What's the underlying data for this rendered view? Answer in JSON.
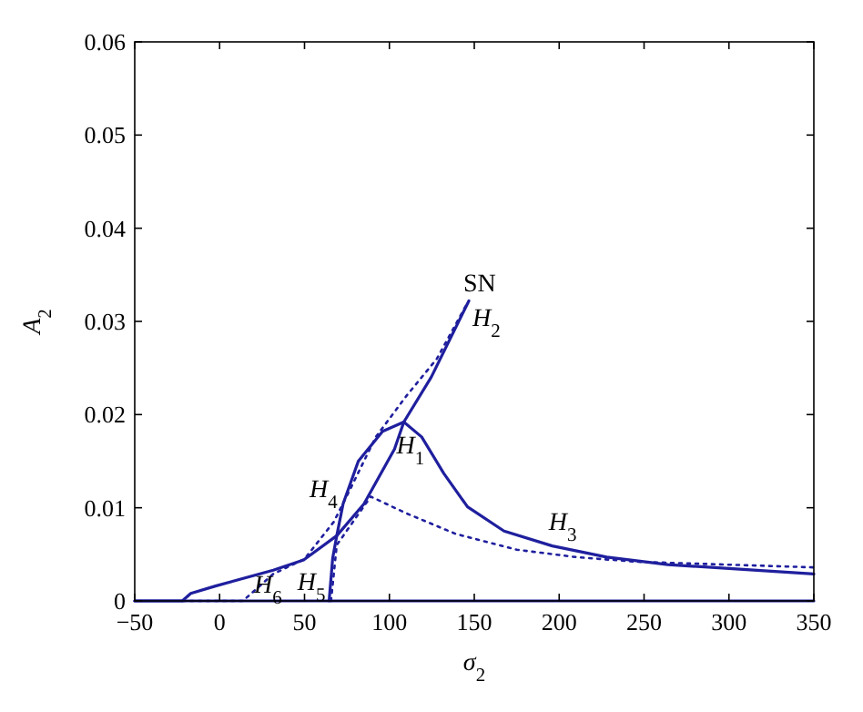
{
  "chart_data": {
    "type": "line",
    "xlabel": "σ$_{2}$",
    "ylabel": "A$_{2}$",
    "xlim": [
      -50,
      350
    ],
    "ylim": [
      0,
      0.06
    ],
    "xticks": [
      -50,
      0,
      50,
      100,
      150,
      200,
      250,
      300,
      350
    ],
    "yticks": [
      0,
      0.01,
      0.02,
      0.03,
      0.04,
      0.05,
      0.06
    ],
    "marker": "none",
    "series": [
      {
        "color": "#1f1f9e",
        "line_style": "solid",
        "x": [
          -50,
          350
        ],
        "values": [
          0,
          0
        ]
      },
      {
        "color": "#1f1f9e",
        "line_style": "solid",
        "x": [
          -50,
          -22,
          -17,
          -2.4,
          31.6,
          49.5,
          69,
          85,
          103,
          108.5,
          124.6,
          146.8
        ],
        "values": [
          0,
          0,
          0.0008,
          0.0016,
          0.0033,
          0.0044,
          0.007,
          0.0104,
          0.0163,
          0.0192,
          0.024,
          0.0322
        ]
      },
      {
        "color": "#1f1f9e",
        "line_style": "solid",
        "x": [
          64.5,
          66.6,
          69,
          72.7,
          81.7,
          96,
          108.5,
          119,
          132,
          146,
          167.5,
          196,
          228,
          264,
          350
        ],
        "values": [
          0,
          0.0046,
          0.007,
          0.0104,
          0.015,
          0.0182,
          0.0192,
          0.0176,
          0.0137,
          0.0101,
          0.0075,
          0.0059,
          0.0047,
          0.0039,
          0.0029
        ]
      },
      {
        "color": "#1f1f9e",
        "line_style": "dotted",
        "x": [
          -22,
          13.7,
          31.6,
          50,
          67.3,
          78,
          92,
          110,
          128,
          146
        ],
        "values": [
          0,
          0,
          0.0029,
          0.0045,
          0.0085,
          0.0124,
          0.0176,
          0.022,
          0.026,
          0.032
        ]
      },
      {
        "color": "#1f1f9e",
        "line_style": "dotted",
        "x": [
          65.6,
          69,
          89,
          110,
          139,
          175,
          210,
          246,
          350
        ],
        "values": [
          0,
          0.006,
          0.0112,
          0.0094,
          0.0072,
          0.0055,
          0.0047,
          0.0042,
          0.0036
        ]
      }
    ],
    "annotations": [
      {
        "text": "SN",
        "x": 146.8,
        "y": 0.0322
      },
      {
        "text": "H$_{2}$",
        "x": 146.8,
        "y": 0.0322
      },
      {
        "text": "H$_{1}$",
        "x": 108.5,
        "y": 0.0192
      },
      {
        "text": "H$_{3}$",
        "x": 196,
        "y": 0.0059
      },
      {
        "text": "H$_{4}$",
        "x": 72.7,
        "y": 0.0104
      },
      {
        "text": "H$_{6}$",
        "x": 40,
        "y": 0.0038
      },
      {
        "text": "H$_{5}$",
        "x": 64.5,
        "y": 0
      }
    ]
  }
}
